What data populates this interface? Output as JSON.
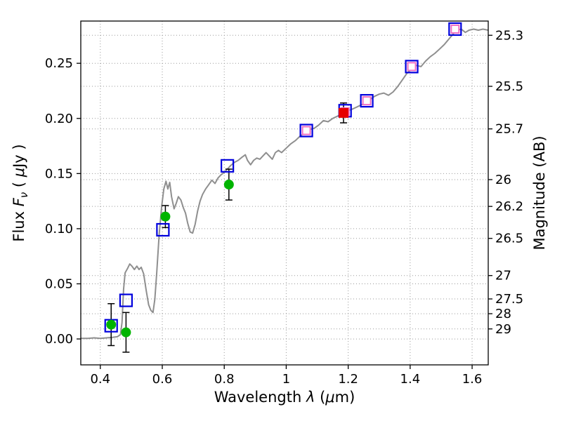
{
  "figure": {
    "background": "#ffffff"
  },
  "chart_data": {
    "type": "line",
    "subtype": "sed-spectrum-with-photometry",
    "title": "",
    "xlabel": "Wavelength λ (μm)",
    "ylabel_left": "Flux Fν ( μJy )",
    "ylabel_right": "Magnitude (AB)",
    "xlim": [
      0.337,
      1.652
    ],
    "ylim": [
      -0.0235,
      0.2883
    ],
    "grid": true,
    "x_ticks": [
      {
        "value": 0.4,
        "label": "0.4"
      },
      {
        "value": 0.6,
        "label": "0.6"
      },
      {
        "value": 0.8,
        "label": "0.8"
      },
      {
        "value": 1.0,
        "label": "1"
      },
      {
        "value": 1.2,
        "label": "1.2"
      },
      {
        "value": 1.4,
        "label": "1.4"
      },
      {
        "value": 1.6,
        "label": "1.6"
      }
    ],
    "y_ticks_left": [
      {
        "value": 0.0,
        "label": "0.00"
      },
      {
        "value": 0.05,
        "label": "0.05"
      },
      {
        "value": 0.1,
        "label": "0.10"
      },
      {
        "value": 0.15,
        "label": "0.15"
      },
      {
        "value": 0.2,
        "label": "0.20"
      },
      {
        "value": 0.25,
        "label": "0.25"
      }
    ],
    "y_ticks_right": [
      {
        "label": "25.3",
        "flux": 0.2754
      },
      {
        "label": "25.5",
        "flux": 0.2291
      },
      {
        "label": "25.7",
        "flux": 0.1905
      },
      {
        "label": "26",
        "flux": 0.1445
      },
      {
        "label": "26.2",
        "flux": 0.1202
      },
      {
        "label": "26.5",
        "flux": 0.0912
      },
      {
        "label": "27",
        "flux": 0.0575
      },
      {
        "label": "27.5",
        "flux": 0.0363
      },
      {
        "label": "28",
        "flux": 0.0229
      },
      {
        "label": "29",
        "flux": 0.0091
      }
    ],
    "xlabel_parts": [
      {
        "t": "Wavelength  "
      },
      {
        "t": "λ",
        "i": true
      },
      {
        "t": " ("
      },
      {
        "t": "μ",
        "i": true
      },
      {
        "t": "m)"
      }
    ],
    "ylabel_left_parts": [
      {
        "t": "Flux  "
      },
      {
        "t": "F",
        "i": true
      },
      {
        "t": "ν",
        "i": true,
        "sub": true
      },
      {
        "t": "  ( "
      },
      {
        "t": "μ",
        "i": true
      },
      {
        "t": "Jy )"
      }
    ],
    "colors": {
      "grid": "#9a9a9a",
      "frame": "#000000",
      "spectrum": "#8f8f8f",
      "blue_square": "#0000dd",
      "pink_square": "#f070c4",
      "green_circle": "#00b400",
      "red_square": "#e60000",
      "error_bar": "#000000"
    },
    "spectrum": [
      [
        0.337,
        0.0005
      ],
      [
        0.36,
        0.0005
      ],
      [
        0.38,
        0.001
      ],
      [
        0.4,
        0.0005
      ],
      [
        0.42,
        0.001
      ],
      [
        0.44,
        0.0015
      ],
      [
        0.455,
        0.002
      ],
      [
        0.465,
        0.004
      ],
      [
        0.47,
        0.015
      ],
      [
        0.475,
        0.045
      ],
      [
        0.48,
        0.06
      ],
      [
        0.488,
        0.064
      ],
      [
        0.495,
        0.068
      ],
      [
        0.502,
        0.066
      ],
      [
        0.51,
        0.063
      ],
      [
        0.518,
        0.066
      ],
      [
        0.525,
        0.063
      ],
      [
        0.532,
        0.065
      ],
      [
        0.54,
        0.059
      ],
      [
        0.548,
        0.044
      ],
      [
        0.556,
        0.031
      ],
      [
        0.563,
        0.026
      ],
      [
        0.57,
        0.024
      ],
      [
        0.576,
        0.036
      ],
      [
        0.582,
        0.06
      ],
      [
        0.59,
        0.095
      ],
      [
        0.598,
        0.12
      ],
      [
        0.605,
        0.136
      ],
      [
        0.612,
        0.143
      ],
      [
        0.618,
        0.136
      ],
      [
        0.624,
        0.142
      ],
      [
        0.63,
        0.129
      ],
      [
        0.638,
        0.118
      ],
      [
        0.645,
        0.123
      ],
      [
        0.652,
        0.129
      ],
      [
        0.66,
        0.126
      ],
      [
        0.668,
        0.119
      ],
      [
        0.675,
        0.114
      ],
      [
        0.682,
        0.105
      ],
      [
        0.69,
        0.097
      ],
      [
        0.698,
        0.096
      ],
      [
        0.706,
        0.104
      ],
      [
        0.714,
        0.116
      ],
      [
        0.722,
        0.125
      ],
      [
        0.73,
        0.131
      ],
      [
        0.74,
        0.136
      ],
      [
        0.75,
        0.14
      ],
      [
        0.76,
        0.144
      ],
      [
        0.77,
        0.141
      ],
      [
        0.78,
        0.146
      ],
      [
        0.79,
        0.149
      ],
      [
        0.8,
        0.151
      ],
      [
        0.81,
        0.154
      ],
      [
        0.82,
        0.157
      ],
      [
        0.832,
        0.16
      ],
      [
        0.845,
        0.162
      ],
      [
        0.858,
        0.165
      ],
      [
        0.868,
        0.167
      ],
      [
        0.875,
        0.162
      ],
      [
        0.885,
        0.158
      ],
      [
        0.895,
        0.162
      ],
      [
        0.905,
        0.164
      ],
      [
        0.915,
        0.163
      ],
      [
        0.925,
        0.166
      ],
      [
        0.935,
        0.169
      ],
      [
        0.945,
        0.166
      ],
      [
        0.955,
        0.163
      ],
      [
        0.965,
        0.169
      ],
      [
        0.975,
        0.171
      ],
      [
        0.985,
        0.169
      ],
      [
        1.0,
        0.173
      ],
      [
        1.015,
        0.177
      ],
      [
        1.03,
        0.18
      ],
      [
        1.045,
        0.184
      ],
      [
        1.06,
        0.187
      ],
      [
        1.075,
        0.19
      ],
      [
        1.09,
        0.191
      ],
      [
        1.105,
        0.194
      ],
      [
        1.12,
        0.198
      ],
      [
        1.135,
        0.197
      ],
      [
        1.15,
        0.2
      ],
      [
        1.165,
        0.202
      ],
      [
        1.18,
        0.204
      ],
      [
        1.195,
        0.207
      ],
      [
        1.21,
        0.208
      ],
      [
        1.225,
        0.21
      ],
      [
        1.24,
        0.212
      ],
      [
        1.255,
        0.214
      ],
      [
        1.27,
        0.217
      ],
      [
        1.285,
        0.22
      ],
      [
        1.3,
        0.222
      ],
      [
        1.315,
        0.223
      ],
      [
        1.33,
        0.221
      ],
      [
        1.345,
        0.224
      ],
      [
        1.36,
        0.229
      ],
      [
        1.375,
        0.235
      ],
      [
        1.39,
        0.241
      ],
      [
        1.405,
        0.245
      ],
      [
        1.42,
        0.248
      ],
      [
        1.435,
        0.247
      ],
      [
        1.45,
        0.252
      ],
      [
        1.465,
        0.256
      ],
      [
        1.48,
        0.259
      ],
      [
        1.495,
        0.263
      ],
      [
        1.51,
        0.267
      ],
      [
        1.525,
        0.272
      ],
      [
        1.54,
        0.277
      ],
      [
        1.552,
        0.28
      ],
      [
        1.565,
        0.281
      ],
      [
        1.578,
        0.278
      ],
      [
        1.59,
        0.28
      ],
      [
        1.605,
        0.281
      ],
      [
        1.62,
        0.28
      ],
      [
        1.635,
        0.281
      ],
      [
        1.652,
        0.28
      ]
    ],
    "blue_open_squares": [
      [
        0.435,
        0.012
      ],
      [
        0.483,
        0.035
      ],
      [
        0.602,
        0.099
      ],
      [
        0.81,
        0.157
      ],
      [
        1.065,
        0.189
      ],
      [
        1.19,
        0.207
      ],
      [
        1.26,
        0.216
      ],
      [
        1.405,
        0.247
      ],
      [
        1.545,
        0.281
      ]
    ],
    "pink_open_squares": [
      [
        1.065,
        0.189
      ],
      [
        1.19,
        0.206
      ],
      [
        1.26,
        0.216
      ],
      [
        1.405,
        0.247
      ],
      [
        1.545,
        0.281
      ]
    ],
    "green_circles": [
      {
        "x": 0.435,
        "y": 0.013,
        "yerr": 0.019
      },
      {
        "x": 0.483,
        "y": 0.006,
        "yerr": 0.018
      },
      {
        "x": 0.61,
        "y": 0.111,
        "yerr": 0.01
      },
      {
        "x": 0.815,
        "y": 0.14,
        "yerr": 0.014
      }
    ],
    "red_square": {
      "x": 1.185,
      "y": 0.205,
      "yerr": 0.009
    }
  }
}
